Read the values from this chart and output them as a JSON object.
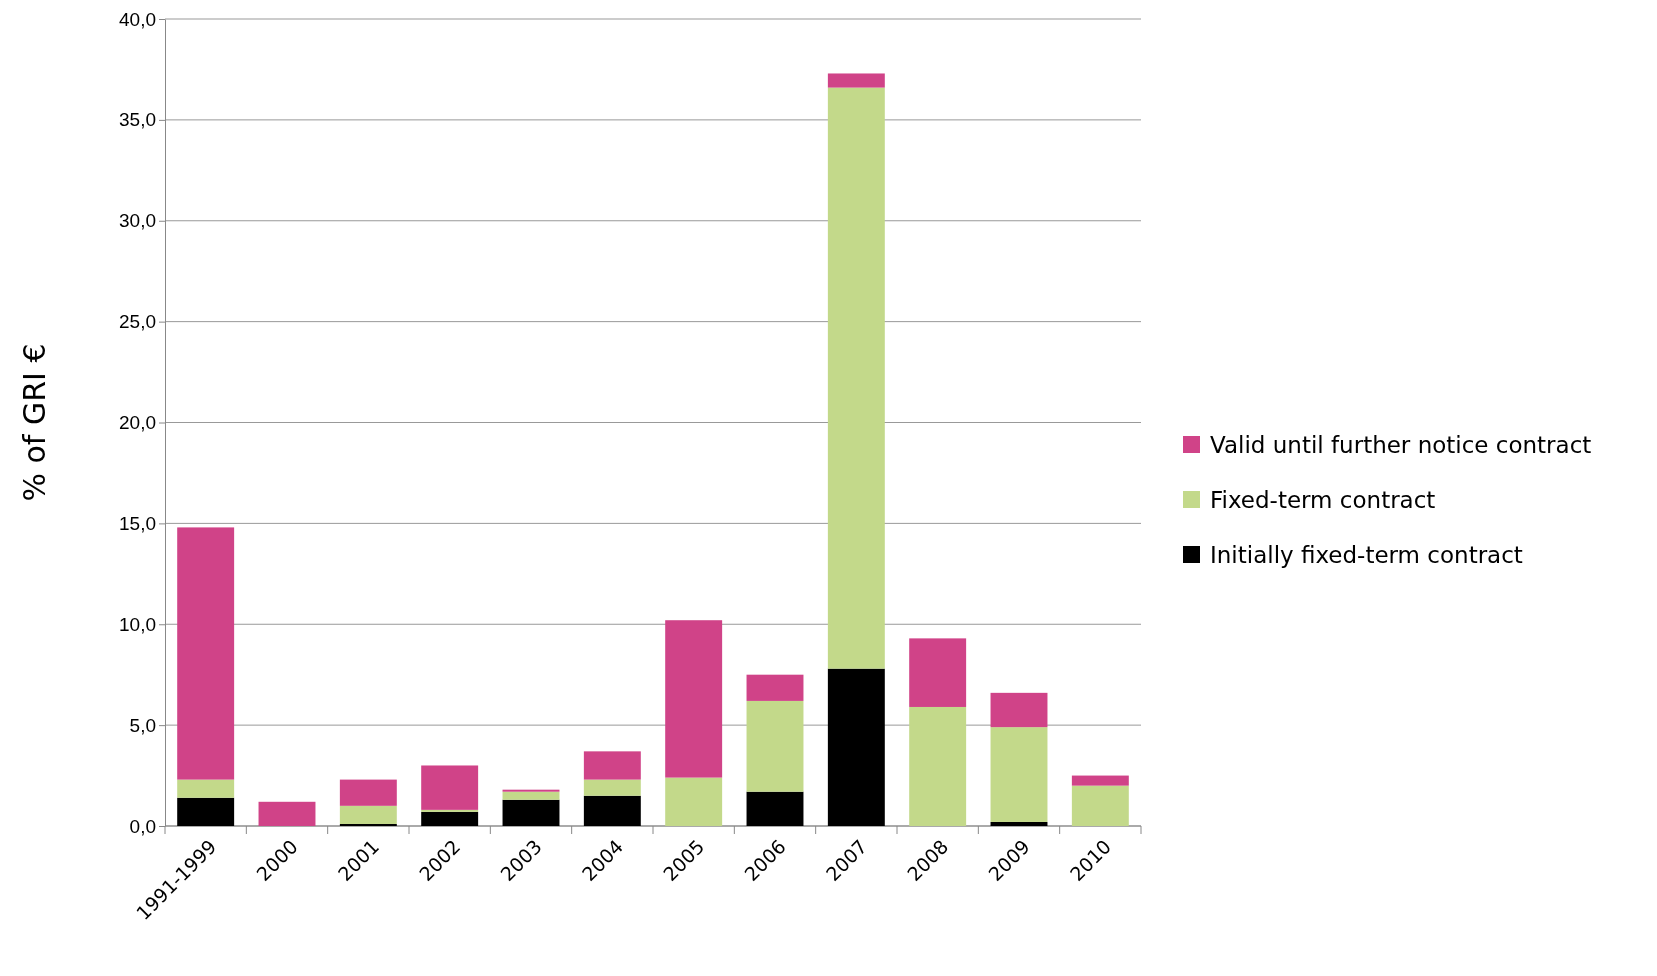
{
  "chart_data": {
    "type": "bar",
    "stacked": true,
    "ylabel": "% of GRI €",
    "categories": [
      "1991-1999",
      "2000",
      "2001",
      "2002",
      "2003",
      "2004",
      "2005",
      "2006",
      "2007",
      "2008",
      "2009",
      "2010"
    ],
    "series": [
      {
        "name": "Initially fixed-term contract",
        "color": "#000000",
        "values": [
          1.4,
          0,
          0.1,
          0.7,
          1.3,
          1.5,
          0,
          1.7,
          7.8,
          0,
          0.2,
          0
        ]
      },
      {
        "name": "Fixed-term contract",
        "color": "#c3d98a",
        "values": [
          0.9,
          0,
          0.9,
          0.1,
          0.4,
          0.8,
          2.4,
          4.5,
          28.8,
          5.9,
          4.7,
          2.0
        ]
      },
      {
        "name": "Valid until further notice contract",
        "color": "#d04388",
        "values": [
          12.5,
          1.2,
          1.3,
          2.2,
          0.1,
          1.4,
          7.8,
          1.3,
          0.7,
          3.4,
          1.7,
          0.5
        ]
      }
    ],
    "ylim": [
      0,
      40
    ],
    "yticks": [
      {
        "value": 0,
        "label": "0,0"
      },
      {
        "value": 5,
        "label": "5,0"
      },
      {
        "value": 10,
        "label": "10,0"
      },
      {
        "value": 15,
        "label": "15,0"
      },
      {
        "value": 20,
        "label": "20,0"
      },
      {
        "value": 25,
        "label": "25,0"
      },
      {
        "value": 30,
        "label": "30,0"
      },
      {
        "value": 35,
        "label": "35,0"
      },
      {
        "value": 40,
        "label": "40,0"
      }
    ],
    "grid": "y",
    "legend": "right"
  }
}
